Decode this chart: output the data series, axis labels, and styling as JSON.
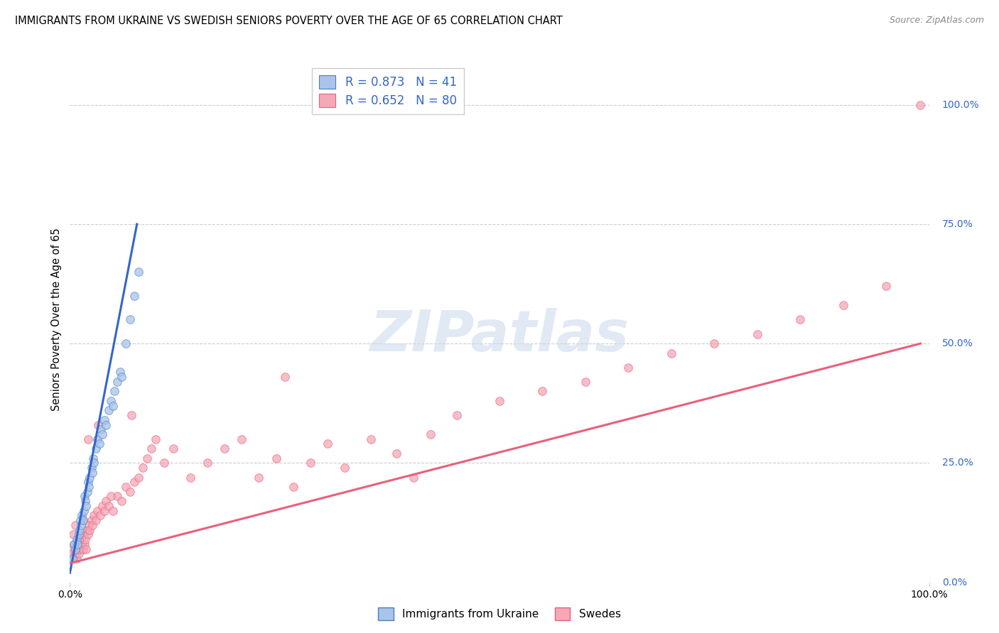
{
  "title": "IMMIGRANTS FROM UKRAINE VS SWEDISH SENIORS POVERTY OVER THE AGE OF 65 CORRELATION CHART",
  "source": "Source: ZipAtlas.com",
  "ylabel": "Seniors Poverty Over the Age of 65",
  "legend_blue_label": "Immigrants from Ukraine",
  "legend_pink_label": "Swedes",
  "R_blue": 0.873,
  "N_blue": 41,
  "R_pink": 0.652,
  "N_pink": 80,
  "blue_fill": "#A8C4E8",
  "pink_fill": "#F4A8B8",
  "blue_edge": "#4A7EC7",
  "pink_edge": "#E8607A",
  "blue_line_color": "#3366CC",
  "pink_line_color": "#E8607A",
  "watermark_text": "ZIPatlas",
  "blue_scatter_x": [
    0.3,
    0.5,
    0.6,
    0.8,
    0.9,
    1.0,
    1.1,
    1.2,
    1.3,
    1.4,
    1.5,
    1.6,
    1.7,
    1.8,
    1.9,
    2.0,
    2.1,
    2.2,
    2.3,
    2.5,
    2.6,
    2.7,
    2.8,
    3.0,
    3.2,
    3.4,
    3.6,
    3.8,
    4.0,
    4.2,
    4.5,
    4.8,
    5.0,
    5.2,
    5.5,
    5.8,
    6.0,
    6.5,
    7.0,
    7.5,
    8.0
  ],
  "blue_scatter_y": [
    5,
    8,
    7,
    9,
    8,
    10,
    11,
    13,
    12,
    14,
    13,
    15,
    18,
    17,
    16,
    19,
    21,
    20,
    22,
    24,
    23,
    26,
    25,
    28,
    30,
    29,
    32,
    31,
    34,
    33,
    36,
    38,
    37,
    40,
    42,
    44,
    43,
    50,
    55,
    60,
    65
  ],
  "pink_scatter_x": [
    0.2,
    0.3,
    0.4,
    0.5,
    0.6,
    0.7,
    0.8,
    0.9,
    1.0,
    1.1,
    1.2,
    1.3,
    1.4,
    1.5,
    1.6,
    1.7,
    1.8,
    1.9,
    2.0,
    2.1,
    2.2,
    2.3,
    2.5,
    2.6,
    2.8,
    3.0,
    3.2,
    3.5,
    3.8,
    4.0,
    4.2,
    4.5,
    5.0,
    5.5,
    6.0,
    6.5,
    7.0,
    7.5,
    8.0,
    8.5,
    9.0,
    9.5,
    10.0,
    11.0,
    12.0,
    14.0,
    16.0,
    18.0,
    20.0,
    22.0,
    24.0,
    26.0,
    28.0,
    30.0,
    32.0,
    35.0,
    38.0,
    40.0,
    45.0,
    50.0,
    55.0,
    60.0,
    65.0,
    70.0,
    75.0,
    80.0,
    85.0,
    90.0,
    95.0,
    99.0,
    0.35,
    0.65,
    1.05,
    1.55,
    2.15,
    3.3,
    4.8,
    7.2,
    25.0,
    42.0
  ],
  "pink_scatter_y": [
    7,
    6,
    5,
    8,
    6,
    7,
    5,
    9,
    6,
    8,
    7,
    9,
    8,
    7,
    10,
    8,
    9,
    7,
    11,
    10,
    12,
    11,
    13,
    12,
    14,
    13,
    15,
    14,
    16,
    15,
    17,
    16,
    15,
    18,
    17,
    20,
    19,
    21,
    22,
    24,
    26,
    28,
    30,
    25,
    28,
    22,
    25,
    28,
    30,
    22,
    26,
    20,
    25,
    29,
    24,
    30,
    27,
    22,
    35,
    38,
    40,
    42,
    45,
    48,
    50,
    52,
    55,
    58,
    62,
    100,
    10,
    12,
    9,
    13,
    30,
    33,
    18,
    35,
    43,
    31
  ],
  "blue_line_x_start": 0,
  "blue_line_y_start": 2,
  "blue_line_x_end": 7.8,
  "blue_line_y_end": 75,
  "pink_line_x_start": 0,
  "pink_line_y_start": 4,
  "pink_line_x_end": 99,
  "pink_line_y_end": 50,
  "xmin": 0,
  "xmax": 100,
  "ymin": 0,
  "ymax": 110,
  "background_color": "#ffffff",
  "grid_color": "#CCCCCC",
  "right_label_color": "#3366CC",
  "ytick_vals": [
    0,
    25,
    50,
    75,
    100
  ],
  "ytick_labels": [
    "0.0%",
    "25.0%",
    "50.0%",
    "75.0%",
    "100.0%"
  ]
}
